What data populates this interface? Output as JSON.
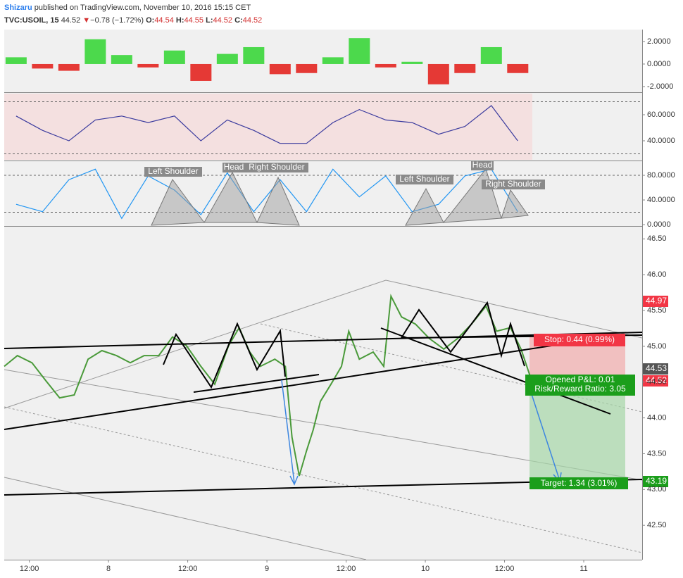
{
  "header": {
    "author": "Shizaru",
    "published": "published on TradingView.com, November 10, 2016 15:15 CET",
    "symbol": "TVC:USOIL, 15",
    "last": "44.52",
    "change": "−0.78 (−1.72%)",
    "o_label": "O:",
    "o": "44.54",
    "h_label": "H:",
    "h": "44.55",
    "l_label": "L:",
    "l": "44.52",
    "c_label": "C:",
    "c": "44.52"
  },
  "chart_data": [
    {
      "type": "bar",
      "xlim": [
        -15.8,
        80.85
      ],
      "ylim": [
        -2.44,
        3.06
      ],
      "yticks": [
        {
          "value": 2,
          "label": "2.0000"
        },
        {
          "value": 0,
          "label": "0.0000"
        },
        {
          "value": -2,
          "label": "-2.0000"
        }
      ],
      "positive_color": "#4cd94c",
      "negative_color": "#e53935",
      "x": [
        -14,
        -10,
        -6,
        -2,
        2,
        6,
        10,
        14,
        18,
        22,
        26,
        30,
        34,
        38,
        42,
        46,
        50,
        54,
        58,
        62
      ],
      "values": [
        0.6,
        -0.4,
        -0.6,
        2.2,
        0.8,
        -0.3,
        1.2,
        -1.5,
        0.9,
        1.5,
        -0.9,
        -0.8,
        0.6,
        2.3,
        -0.3,
        0.2,
        -1.8,
        -0.8,
        1.5,
        -0.8
      ]
    },
    {
      "type": "line",
      "xlim": [
        -15.8,
        80.85
      ],
      "ylim": [
        25.4,
        76.2
      ],
      "color": "#3b3b9e",
      "yticks": [
        {
          "value": 60,
          "label": "60.0000"
        },
        {
          "value": 40,
          "label": "40.0000"
        }
      ],
      "hlines": [
        70,
        30
      ],
      "x": [
        -14,
        -10,
        -6,
        -2,
        2,
        6,
        10,
        14,
        18,
        22,
        26,
        30,
        34,
        38,
        42,
        46,
        50,
        54,
        58,
        62
      ],
      "values": [
        59,
        48,
        40,
        56,
        59,
        54,
        59,
        40,
        56,
        48,
        38,
        38,
        54,
        64,
        56,
        54,
        45,
        51,
        67,
        40
      ]
    },
    {
      "type": "line",
      "xlim": [
        -15.8,
        80.85
      ],
      "ylim": [
        -1.1,
        102.9
      ],
      "color": "#2196f3",
      "yticks": [
        {
          "value": 80,
          "label": "80.0000"
        },
        {
          "value": 40,
          "label": "40.0000"
        },
        {
          "value": 0,
          "label": "0.0000"
        }
      ],
      "hlines": [
        80,
        20
      ],
      "annotations": [
        "Left Shoulder",
        "Head",
        "Right Shoulder",
        "Left Shoulder",
        "Head",
        "Right Shoulder"
      ],
      "x": [
        -14,
        -10,
        -6,
        -2,
        2,
        6,
        10,
        14,
        18,
        22,
        26,
        30,
        34,
        38,
        42,
        46,
        50,
        54,
        58,
        62
      ],
      "values": [
        33,
        21,
        73,
        90,
        10,
        79,
        56,
        16,
        84,
        21,
        73,
        21,
        90,
        45,
        79,
        21,
        33,
        79,
        90,
        21
      ]
    },
    {
      "type": "line",
      "xlim": [
        -15.8,
        80.85
      ],
      "ylim": [
        42.02,
        46.67
      ],
      "color": "#4a9a3a",
      "yticks": [
        {
          "value": 46.5,
          "label": "46.50"
        },
        {
          "value": 46,
          "label": "46.00"
        },
        {
          "value": 45.5,
          "label": "45.50"
        },
        {
          "value": 45,
          "label": "45.00"
        },
        {
          "value": 44.5,
          "label": "44.50"
        },
        {
          "value": 44,
          "label": "44.00"
        },
        {
          "value": 43.5,
          "label": "43.50"
        },
        {
          "value": 43,
          "label": "43.00"
        },
        {
          "value": 42.5,
          "label": "42.50"
        }
      ],
      "xticks": [
        {
          "value": -12,
          "label": "12:00"
        },
        {
          "value": 0,
          "label": "8"
        },
        {
          "value": 12,
          "label": "12:00"
        },
        {
          "value": 24,
          "label": "9"
        },
        {
          "value": 36,
          "label": "12:00"
        },
        {
          "value": 48,
          "label": "10"
        },
        {
          "value": 60,
          "label": "12:00"
        },
        {
          "value": 72,
          "label": "11"
        }
      ],
      "price_tags": [
        "44.97",
        "44.53",
        "44.52",
        "43.19"
      ],
      "annotations": [
        "Stop: 0.44 (0.99%)",
        "Opened P&L: 0.01",
        "Risk/Reward Ratio: 3.05",
        "Target: 1.34 (3.01%)"
      ],
      "x": [
        -15.8,
        -13.8,
        -11.6,
        -9.5,
        -7.4,
        -5.2,
        -3.1,
        -1.0,
        1.2,
        3.3,
        5.4,
        7.6,
        9.7,
        11.8,
        14.0,
        16.1,
        18.2,
        19.8,
        21.4,
        23.0,
        25.2,
        26.8,
        27.8,
        28.9,
        30.0,
        31.0,
        32.1,
        33.7,
        35.3,
        36.4,
        38.0,
        40.1,
        41.7,
        42.8,
        44.4,
        46.5,
        48.6,
        50.8,
        52.9,
        55.0,
        57.2,
        58.8,
        60.9,
        62.5,
        64.1
      ],
      "values": [
        44.72,
        44.87,
        44.77,
        44.52,
        44.28,
        44.32,
        44.82,
        44.94,
        44.87,
        44.77,
        44.87,
        44.87,
        45.13,
        45.01,
        44.72,
        44.47,
        45.01,
        45.26,
        44.92,
        44.72,
        44.82,
        44.72,
        43.73,
        43.19,
        43.54,
        43.83,
        44.23,
        44.47,
        44.72,
        45.21,
        44.82,
        44.92,
        44.72,
        45.7,
        45.41,
        45.31,
        45.11,
        44.96,
        45.11,
        45.31,
        45.56,
        45.21,
        45.26,
        44.96,
        44.52
      ]
    }
  ]
}
